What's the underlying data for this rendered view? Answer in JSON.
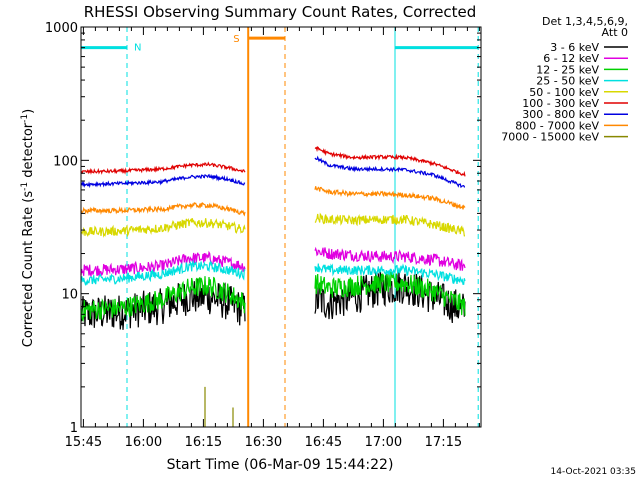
{
  "chart_data": {
    "type": "line",
    "title": "RHESSI Observing Summary Count Rates, Corrected",
    "ylabel_parts": {
      "a": "Corrected Count Rate (s",
      "b": "-1",
      "c": " detector",
      "d": "-1",
      "e": ")"
    },
    "xlabel": "Start Time (06-Mar-09 15:44:22)",
    "timestamp": "14-Oct-2021 03:35",
    "yscale": "log",
    "ylim": [
      1,
      1000
    ],
    "xlim_minutes": [
      0,
      100
    ],
    "x_ticks": [
      {
        "label": "15:45",
        "t": 0.6
      },
      {
        "label": "16:00",
        "t": 15.6
      },
      {
        "label": "16:15",
        "t": 30.6
      },
      {
        "label": "16:30",
        "t": 45.6
      },
      {
        "label": "16:45",
        "t": 60.6
      },
      {
        "label": "17:00",
        "t": 75.6
      },
      {
        "label": "17:15",
        "t": 90.6
      }
    ],
    "y_ticks": [
      {
        "label": "1",
        "v": 1
      },
      {
        "label": "10",
        "v": 10
      },
      {
        "label": "100",
        "v": 100
      },
      {
        "label": "1000",
        "v": 1000
      }
    ],
    "legend_header": [
      "Det 1,3,4,5,6,9,",
      "Att 0"
    ],
    "series": [
      {
        "name": "3 - 6 keV",
        "color": "#000000",
        "segments": [
          {
            "x": [
              0,
              10,
              20,
              27,
              32,
              37,
              41
            ],
            "y": [
              7,
              7.3,
              8,
              9.5,
              9.5,
              8.5,
              7.5
            ]
          },
          {
            "x": [
              58.5,
              62,
              68,
              75,
              81,
              88,
              96
            ],
            "y": [
              9,
              8.5,
              9.5,
              11,
              11.5,
              9.5,
              7.5
            ]
          }
        ]
      },
      {
        "name": "6 - 12 keV",
        "color": "#e000e0",
        "segments": [
          {
            "x": [
              0,
              10,
              20,
              27,
              32,
              37,
              41
            ],
            "y": [
              15,
              15.2,
              16,
              18.5,
              18.5,
              17,
              16
            ]
          },
          {
            "x": [
              58.5,
              62,
              68,
              75,
              81,
              88,
              96
            ],
            "y": [
              21,
              20,
              19.5,
              19,
              19,
              18,
              16
            ]
          }
        ]
      },
      {
        "name": "12 - 25 keV",
        "color": "#00d000",
        "segments": [
          {
            "x": [
              0,
              10,
              20,
              27,
              32,
              37,
              41
            ],
            "y": [
              7.5,
              7.8,
              9,
              11,
              11.5,
              10,
              8.5
            ]
          },
          {
            "x": [
              58.5,
              62,
              68,
              75,
              81,
              88,
              96
            ],
            "y": [
              12,
              11,
              11.5,
              12,
              12,
              10.5,
              8
            ]
          }
        ]
      },
      {
        "name": "25 - 50 keV",
        "color": "#00e0e0",
        "segments": [
          {
            "x": [
              0,
              10,
              20,
              27,
              32,
              37,
              41
            ],
            "y": [
              12.5,
              13,
              14,
              16,
              16,
              15,
              14
            ]
          },
          {
            "x": [
              58.5,
              62,
              68,
              75,
              81,
              88,
              96
            ],
            "y": [
              16,
              15,
              15,
              15,
              15,
              14,
              12.5
            ]
          }
        ]
      },
      {
        "name": "50 - 100 keV",
        "color": "#d8d800",
        "segments": [
          {
            "x": [
              0,
              10,
              20,
              27,
              32,
              37,
              41
            ],
            "y": [
              29,
              29.5,
              31,
              34,
              34,
              32,
              30
            ]
          },
          {
            "x": [
              58.5,
              62,
              68,
              75,
              81,
              88,
              96
            ],
            "y": [
              37,
              36,
              35.5,
              36,
              36,
              33,
              29
            ]
          }
        ]
      },
      {
        "name": "100 - 300 keV",
        "color": "#e00000",
        "segments": [
          {
            "x": [
              0,
              10,
              20,
              27,
              32,
              37,
              41
            ],
            "y": [
              82,
              83,
              86,
              92,
              93,
              88,
              82
            ]
          },
          {
            "x": [
              58.5,
              62,
              68,
              75,
              81,
              88,
              96
            ],
            "y": [
              125,
              112,
              105,
              106,
              105,
              95,
              78
            ]
          }
        ]
      },
      {
        "name": "300 - 800 keV",
        "color": "#0000e0",
        "segments": [
          {
            "x": [
              0,
              10,
              20,
              27,
              32,
              37,
              41
            ],
            "y": [
              66,
              67,
              69,
              75,
              76,
              72,
              66
            ]
          },
          {
            "x": [
              58.5,
              62,
              68,
              75,
              81,
              88,
              96
            ],
            "y": [
              105,
              92,
              86,
              86,
              85,
              78,
              63
            ]
          }
        ]
      },
      {
        "name": "800 - 7000 keV",
        "color": "#ff8800",
        "segments": [
          {
            "x": [
              0,
              10,
              20,
              27,
              32,
              37,
              41
            ],
            "y": [
              42,
              42,
              43,
              46,
              46,
              43,
              40
            ]
          },
          {
            "x": [
              58.5,
              62,
              68,
              75,
              81,
              88,
              96
            ],
            "y": [
              62,
              58,
              56,
              56,
              55,
              52,
              44
            ]
          }
        ]
      },
      {
        "name": "7000 - 15000 keV",
        "color": "#888800",
        "segments": [
          {
            "x": [
              31,
              31,
              31
            ],
            "y": [
              1,
              2,
              1
            ]
          },
          {
            "x": [
              38,
              38,
              38
            ],
            "y": [
              1,
              1.4,
              1
            ]
          }
        ]
      }
    ],
    "annotations": {
      "night_label": "N",
      "saa_label": "S",
      "night_color": "#00e0e0",
      "saa_color": "#ff8800",
      "night_periods": [
        {
          "start": 0,
          "end": 11.5,
          "end_dashed": true
        },
        {
          "start": 78.5,
          "end": 99.3,
          "end_dashed": true
        }
      ],
      "saa_periods": [
        {
          "start": 41.8,
          "end": 51.0
        }
      ],
      "marker_level": 700
    }
  }
}
